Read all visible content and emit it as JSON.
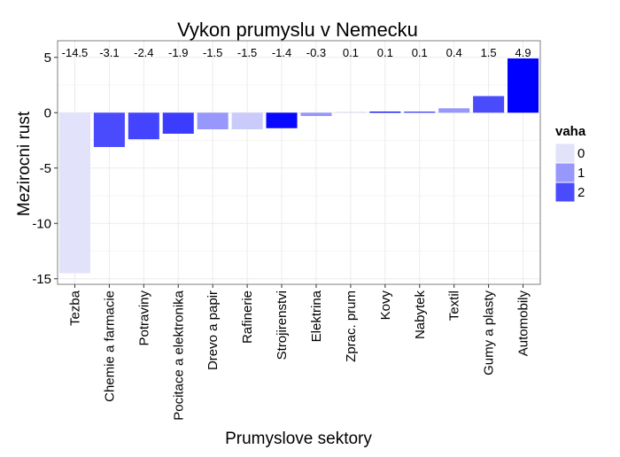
{
  "chart_data": {
    "type": "bar",
    "title": "Vykon prumyslu v Nemecku",
    "xlabel": "Prumyslove sektory",
    "ylabel": "Mezirocni rust",
    "categories": [
      "Tezba",
      "Chemie a farmacie",
      "Potraviny",
      "Pocitace a elektronika",
      "Drevo a papir",
      "Rafinerie",
      "Strojirenstvi",
      "Elektrina",
      "Zprac. prum",
      "Kovy",
      "Nabytek",
      "Textil",
      "Gumy a plasty",
      "Automobily"
    ],
    "values": [
      -14.5,
      -3.1,
      -2.4,
      -1.9,
      -1.5,
      -1.5,
      -1.4,
      -0.3,
      0.1,
      0.1,
      0.1,
      0.4,
      1.5,
      4.9
    ],
    "value_labels": [
      "-14.5",
      "-3.1",
      "-2.4",
      "-1.9",
      "-1.5",
      "-1.5",
      "-1.4",
      "-0.3",
      "0.1",
      "0.1",
      "0.1",
      "0.4",
      "1.5",
      "4.9"
    ],
    "weights": [
      0.0,
      2.0,
      2.1,
      2.2,
      1.0,
      0.3,
      2.9,
      1.0,
      0.0,
      3.0,
      2.2,
      1.0,
      2.0,
      3.0
    ],
    "ylim": [
      -15.5,
      6.5
    ],
    "yticks": [
      5,
      0,
      -5,
      -10,
      -15
    ],
    "ytick_labels": [
      "5",
      "0",
      "-5",
      "-10",
      "-15"
    ],
    "grid": true,
    "legend": {
      "title": "vaha",
      "entries": [
        "0",
        "1",
        "2"
      ],
      "entry_values": [
        0,
        1,
        2
      ],
      "placement": "right"
    },
    "colors": {
      "low": "#e2e2fb",
      "high": "#0000ff",
      "weight_max": 3,
      "grid": "#ebebeb",
      "panel_border": "#7f7f7f"
    }
  }
}
